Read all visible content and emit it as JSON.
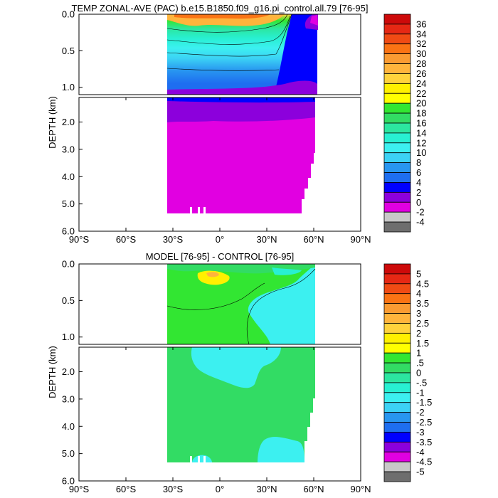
{
  "chart_data": [
    {
      "type": "heatmap",
      "title": "TEMP ZONAL-AVE (PAC) b.e15.B1850.f09_g16.pi_control.all.79 [76-95]",
      "xlabel": "",
      "ylabel": "DEPTH (km)",
      "xlim": [
        -90,
        90
      ],
      "ylim": [
        6.0,
        0.0
      ],
      "x_ticks": [
        {
          "value": -90,
          "label": "90°S"
        },
        {
          "value": -60,
          "label": "60°S"
        },
        {
          "value": -30,
          "label": "30°S"
        },
        {
          "value": 0,
          "label": "0°"
        },
        {
          "value": 30,
          "label": "30°N"
        },
        {
          "value": 60,
          "label": "60°N"
        },
        {
          "value": 90,
          "label": "90°N"
        }
      ],
      "y_ticks_upper": [
        {
          "value": 0.0,
          "label": "0.0"
        },
        {
          "value": 0.5,
          "label": "0.5"
        },
        {
          "value": 1.0,
          "label": "1.0"
        }
      ],
      "y_ticks_lower": [
        {
          "value": 2.0,
          "label": "2.0"
        },
        {
          "value": 3.0,
          "label": "3.0"
        },
        {
          "value": 4.0,
          "label": "4.0"
        },
        {
          "value": 5.0,
          "label": "5.0"
        },
        {
          "value": 6.0,
          "label": "6.0"
        }
      ],
      "split_depth_km": 1.1,
      "ocean_extent_lat": [
        -33,
        61
      ],
      "bottom_depth_km": 5.35,
      "colorbar_labels": [
        "36",
        "34",
        "32",
        "30",
        "28",
        "26",
        "24",
        "22",
        "20",
        "18",
        "16",
        "14",
        "12",
        "10",
        "8",
        "6",
        "4",
        "2",
        "0",
        "-2",
        "-4"
      ],
      "colorbar_colors": [
        "#cd0a0a",
        "#e62814",
        "#f04b14",
        "#fa7314",
        "#fa9b32",
        "#ffb43c",
        "#ffd23c",
        "#fff000",
        "#ffff00",
        "#32e632",
        "#32dc64",
        "#2ce6a0",
        "#28f0d2",
        "#3cf0f0",
        "#3cd2f5",
        "#2896f0",
        "#1e6ef0",
        "#0000ff",
        "#8c00dc",
        "#e100e1",
        "#c8c8c8",
        "#6e6e6e"
      ]
    },
    {
      "type": "heatmap",
      "title": "MODEL [76-95] - CONTROL [76-95]",
      "xlabel": "",
      "ylabel": "DEPTH (km)",
      "xlim": [
        -90,
        90
      ],
      "ylim": [
        6.0,
        0.0
      ],
      "x_ticks": [
        {
          "value": -90,
          "label": "90°S"
        },
        {
          "value": -60,
          "label": "60°S"
        },
        {
          "value": -30,
          "label": "30°S"
        },
        {
          "value": 0,
          "label": "0°"
        },
        {
          "value": 30,
          "label": "30°N"
        },
        {
          "value": 60,
          "label": "60°N"
        },
        {
          "value": 90,
          "label": "90°N"
        }
      ],
      "y_ticks_upper": [
        {
          "value": 0.0,
          "label": "0.0"
        },
        {
          "value": 0.5,
          "label": "0.5"
        },
        {
          "value": 1.0,
          "label": "1.0"
        }
      ],
      "y_ticks_lower": [
        {
          "value": 2.0,
          "label": "2.0"
        },
        {
          "value": 3.0,
          "label": "3.0"
        },
        {
          "value": 4.0,
          "label": "4.0"
        },
        {
          "value": 5.0,
          "label": "5.0"
        },
        {
          "value": 6.0,
          "label": "6.0"
        }
      ],
      "split_depth_km": 1.1,
      "ocean_extent_lat": [
        -33,
        61
      ],
      "bottom_depth_km": 5.35,
      "colorbar_labels": [
        "5",
        "4.5",
        "4",
        "3.5",
        "3",
        "2.5",
        "2",
        "1.5",
        "1",
        ".5",
        "0",
        "-.5",
        "-1",
        "-1.5",
        "-2",
        "-2.5",
        "-3",
        "-3.5",
        "-4",
        "-4.5",
        "-5"
      ],
      "colorbar_colors": [
        "#cd0a0a",
        "#e62814",
        "#f04b14",
        "#fa7314",
        "#fa9b32",
        "#ffb43c",
        "#ffd23c",
        "#fff000",
        "#ffff00",
        "#32e632",
        "#32dc64",
        "#2ce6a0",
        "#28f0d2",
        "#3cf0f0",
        "#3cd2f5",
        "#2896f0",
        "#1e6ef0",
        "#0000ff",
        "#8c00dc",
        "#e100e1",
        "#c8c8c8",
        "#6e6e6e"
      ]
    }
  ]
}
